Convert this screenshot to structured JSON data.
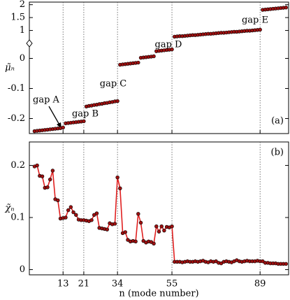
{
  "chart_data": [
    {
      "type": "scatter",
      "ylabel": "μ̃ₙ",
      "panel_label": "(a)",
      "xlim": [
        0,
        100
      ],
      "ylim": [
        -0.25,
        2.1
      ],
      "ybreak": [
        0.05,
        0.5
      ],
      "yticks": [
        -0.2,
        -0.1,
        0,
        1,
        1.5,
        2
      ],
      "vlines": [
        13,
        21,
        34,
        55,
        89
      ],
      "marker_color": "#a01010",
      "annotations": [
        "gap A",
        "gap B",
        "gap C",
        "gap D",
        "gap E"
      ],
      "x": [
        2,
        3,
        4,
        5,
        6,
        7,
        8,
        9,
        10,
        11,
        12,
        13,
        14,
        15,
        16,
        17,
        18,
        19,
        20,
        21,
        22,
        23,
        24,
        25,
        26,
        27,
        28,
        29,
        30,
        31,
        32,
        33,
        34,
        35,
        36,
        37,
        38,
        39,
        40,
        41,
        42,
        43,
        44,
        45,
        46,
        47,
        48,
        49,
        50,
        51,
        52,
        53,
        54,
        55,
        56,
        57,
        58,
        59,
        60,
        61,
        62,
        63,
        64,
        65,
        66,
        67,
        68,
        69,
        70,
        71,
        72,
        73,
        74,
        75,
        76,
        77,
        78,
        79,
        80,
        81,
        82,
        83,
        84,
        85,
        86,
        87,
        88,
        89,
        90,
        91,
        92,
        93,
        94,
        95,
        96,
        97,
        98,
        99
      ],
      "values": [
        -0.242,
        -0.241,
        -0.24,
        -0.239,
        -0.238,
        -0.237,
        -0.236,
        -0.235,
        -0.234,
        -0.233,
        -0.232,
        -0.23,
        -0.216,
        -0.215,
        -0.214,
        -0.213,
        -0.212,
        -0.211,
        -0.21,
        -0.209,
        -0.16,
        -0.158,
        -0.157,
        -0.155,
        -0.154,
        -0.152,
        -0.151,
        -0.149,
        -0.148,
        -0.146,
        -0.145,
        -0.143,
        -0.142,
        -0.021,
        -0.02,
        -0.019,
        -0.018,
        -0.017,
        -0.016,
        -0.015,
        -0.014,
        0.002,
        0.003,
        0.004,
        0.005,
        0.006,
        0.007,
        0.024,
        0.025,
        0.026,
        0.027,
        0.028,
        0.029,
        0.03,
        0.76,
        0.77,
        0.78,
        0.78,
        0.79,
        0.8,
        0.81,
        0.82,
        0.82,
        0.83,
        0.84,
        0.85,
        0.86,
        0.87,
        0.87,
        0.88,
        0.89,
        0.9,
        0.91,
        0.91,
        0.92,
        0.93,
        0.94,
        0.95,
        0.95,
        0.96,
        0.97,
        0.98,
        0.99,
        0.99,
        1.0,
        1.01,
        1.02,
        1.03,
        1.8,
        1.81,
        1.82,
        1.83,
        1.84,
        1.85,
        1.86,
        1.87,
        1.88,
        1.89
      ]
    },
    {
      "type": "line",
      "ylabel": "χ̃ₙ",
      "panel_label": "(b)",
      "xlabel": "n (mode number)",
      "xlim": [
        0,
        100
      ],
      "ylim": [
        -0.01,
        0.245
      ],
      "yticks": [
        0,
        0.1,
        0.2
      ],
      "xticks": [
        13,
        21,
        34,
        55,
        89
      ],
      "line_color": "#e02020",
      "marker_color": "#a01010",
      "x": [
        2,
        3,
        4,
        5,
        6,
        7,
        8,
        9,
        10,
        11,
        12,
        13,
        14,
        15,
        16,
        17,
        18,
        19,
        20,
        21,
        22,
        23,
        24,
        25,
        26,
        27,
        28,
        29,
        30,
        31,
        32,
        33,
        34,
        35,
        36,
        37,
        38,
        39,
        40,
        41,
        42,
        43,
        44,
        45,
        46,
        47,
        48,
        49,
        50,
        51,
        52,
        53,
        54,
        55,
        56,
        57,
        58,
        59,
        60,
        61,
        62,
        63,
        64,
        65,
        66,
        67,
        68,
        69,
        70,
        71,
        72,
        73,
        74,
        75,
        76,
        77,
        78,
        79,
        80,
        81,
        82,
        83,
        84,
        85,
        86,
        87,
        88,
        89,
        90,
        91,
        92,
        93,
        94,
        95,
        96,
        97,
        98,
        99
      ],
      "values": [
        0.198,
        0.2,
        0.18,
        0.179,
        0.157,
        0.158,
        0.173,
        0.19,
        0.135,
        0.133,
        0.098,
        0.099,
        0.1,
        0.114,
        0.12,
        0.11,
        0.105,
        0.096,
        0.095,
        0.095,
        0.094,
        0.093,
        0.095,
        0.105,
        0.108,
        0.08,
        0.079,
        0.078,
        0.077,
        0.089,
        0.087,
        0.088,
        0.177,
        0.156,
        0.07,
        0.072,
        0.057,
        0.054,
        0.055,
        0.054,
        0.107,
        0.09,
        0.055,
        0.052,
        0.054,
        0.053,
        0.05,
        0.083,
        0.073,
        0.083,
        0.075,
        0.082,
        0.081,
        0.083,
        0.015,
        0.015,
        0.015,
        0.014,
        0.015,
        0.016,
        0.015,
        0.015,
        0.016,
        0.015,
        0.016,
        0.017,
        0.015,
        0.014,
        0.016,
        0.015,
        0.016,
        0.013,
        0.012,
        0.015,
        0.016,
        0.015,
        0.014,
        0.016,
        0.018,
        0.016,
        0.015,
        0.016,
        0.017,
        0.016,
        0.016,
        0.016,
        0.017,
        0.016,
        0.016,
        0.013,
        0.013,
        0.012,
        0.012,
        0.012,
        0.011,
        0.011,
        0.011,
        0.011
      ]
    }
  ]
}
